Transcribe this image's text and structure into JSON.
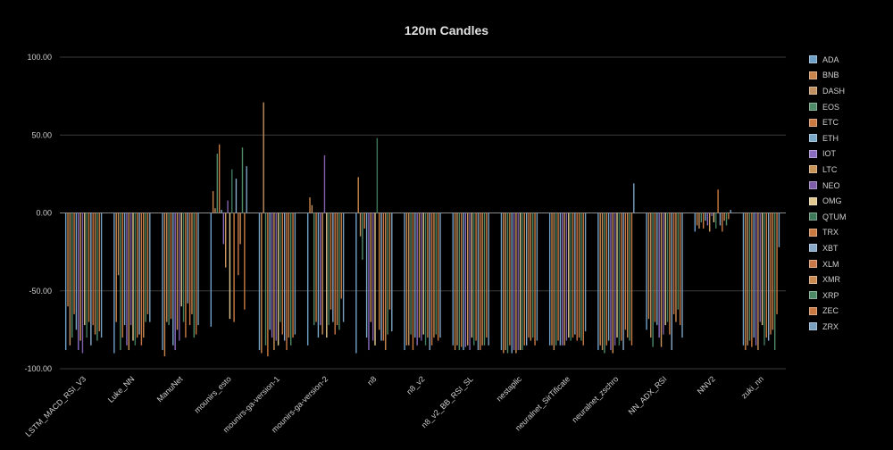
{
  "chart_data": {
    "type": "bar",
    "title": "120m Candles",
    "xlabel": "",
    "ylabel": "",
    "ylim": [
      -100,
      100
    ],
    "yticks": [
      "100.00",
      "50.00",
      "0.00",
      "-50.00",
      "-100.00"
    ],
    "grid": true,
    "legend_position": "right",
    "categories": [
      "LSTM_MACD_RSI_V3",
      "Luke_NN",
      "ManuNet",
      "mounirs_esto",
      "mounirs-ga-version-1",
      "mounirs-ga-version-2",
      "n8",
      "n8_v2",
      "n8_v2_BB_RSI_SL",
      "nestaplic",
      "neuralnet_SirTificate",
      "neuralnet_zschro",
      "NN_ADX_RSI",
      "NNV2",
      "zuki_nn"
    ],
    "series": [
      {
        "name": "ADA",
        "color": "#6fa0c8",
        "values": [
          -88,
          -90,
          -88,
          -73,
          -88,
          -85,
          -90,
          -88,
          -85,
          -88,
          -85,
          -88,
          -75,
          -12,
          -85
        ]
      },
      {
        "name": "BNB",
        "color": "#c8844a",
        "values": [
          -60,
          -70,
          -92,
          14,
          -90,
          10,
          23,
          -85,
          -88,
          -90,
          -85,
          -85,
          -68,
          -8,
          -88
        ]
      },
      {
        "name": "DASH",
        "color": "#c09060",
        "values": [
          -85,
          -40,
          -70,
          3,
          71,
          5,
          -15,
          -85,
          -85,
          -88,
          -88,
          -88,
          -80,
          -10,
          -85
        ]
      },
      {
        "name": "EOS",
        "color": "#4f8a68",
        "values": [
          -80,
          -88,
          -72,
          38,
          -85,
          -72,
          -30,
          -78,
          -88,
          -90,
          -85,
          -90,
          -86,
          -6,
          -82
        ]
      },
      {
        "name": "ETC",
        "color": "#c87a40",
        "values": [
          -65,
          -80,
          -68,
          44,
          -92,
          -70,
          -10,
          -88,
          -86,
          -85,
          -82,
          -85,
          -70,
          -10,
          -86
        ]
      },
      {
        "name": "ETH",
        "color": "#7aa8c8",
        "values": [
          -75,
          -72,
          -85,
          2,
          -75,
          -80,
          -80,
          -80,
          -88,
          -90,
          -85,
          -82,
          -72,
          -5,
          -80
        ]
      },
      {
        "name": "IOT",
        "color": "#8a6cc0",
        "values": [
          -88,
          -85,
          -88,
          -20,
          -80,
          -72,
          -88,
          -85,
          -86,
          -88,
          -85,
          -88,
          -80,
          -8,
          -85
        ]
      },
      {
        "name": "LTC",
        "color": "#c8945a",
        "values": [
          -82,
          -88,
          -75,
          -35,
          -88,
          -78,
          -70,
          -80,
          -85,
          -90,
          -85,
          -90,
          -86,
          -12,
          -88
        ]
      },
      {
        "name": "NEO",
        "color": "#7e5ea8",
        "values": [
          -90,
          -72,
          -82,
          8,
          -82,
          37,
          -82,
          -82,
          -88,
          -88,
          -82,
          -85,
          -78,
          -2,
          -70
        ]
      },
      {
        "name": "OMG",
        "color": "#e0c890",
        "values": [
          -72,
          -82,
          -60,
          -68,
          -85,
          -80,
          -85,
          -78,
          -80,
          -88,
          -80,
          -80,
          -72,
          -6,
          -72
        ]
      },
      {
        "name": "QTUM",
        "color": "#3e7a5a",
        "values": [
          -80,
          -85,
          -70,
          28,
          -70,
          -72,
          48,
          -85,
          -85,
          -88,
          -82,
          -85,
          -70,
          -10,
          -85
        ]
      },
      {
        "name": "TRX",
        "color": "#c87a40",
        "values": [
          -70,
          -80,
          -80,
          -70,
          -78,
          -62,
          -75,
          -80,
          -82,
          -85,
          -80,
          -82,
          -78,
          15,
          -80
        ]
      },
      {
        "name": "XBT",
        "color": "#88aac8",
        "values": [
          -85,
          -78,
          -58,
          22,
          -82,
          -70,
          -82,
          -88,
          -88,
          -85,
          -78,
          -88,
          -88,
          -8,
          -82
        ]
      },
      {
        "name": "XLM",
        "color": "#c87848",
        "values": [
          -72,
          -85,
          -72,
          -40,
          -88,
          -78,
          -82,
          -85,
          -88,
          -80,
          -82,
          -75,
          -65,
          -12,
          -78
        ]
      },
      {
        "name": "XMR",
        "color": "#c88a50",
        "values": [
          -78,
          -80,
          -65,
          -20,
          -80,
          -72,
          -88,
          -80,
          -85,
          -82,
          -80,
          -80,
          -70,
          -5,
          -75
        ]
      },
      {
        "name": "XRP",
        "color": "#4e8a66",
        "values": [
          -82,
          -70,
          -80,
          42,
          -85,
          -75,
          -78,
          -78,
          -85,
          -80,
          -82,
          -82,
          -62,
          -8,
          -88
        ]
      },
      {
        "name": "ZEC",
        "color": "#c87a42",
        "values": [
          -76,
          -65,
          -78,
          -62,
          -80,
          -55,
          -62,
          -82,
          -80,
          -85,
          -85,
          -85,
          -72,
          -4,
          -65
        ]
      },
      {
        "name": "ZRX",
        "color": "#7aa0c0",
        "values": [
          -80,
          -70,
          -72,
          30,
          -78,
          -70,
          -76,
          -80,
          -85,
          -82,
          -76,
          19,
          -80,
          2,
          -22
        ]
      }
    ]
  }
}
